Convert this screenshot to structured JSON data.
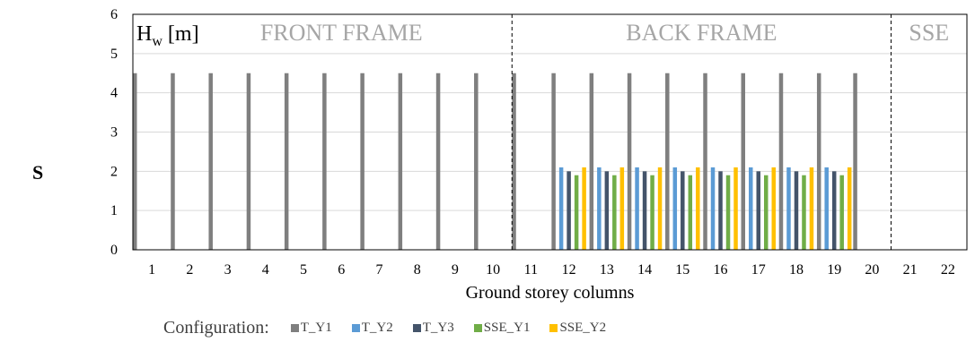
{
  "side_label": "S",
  "legend": {
    "title": "Configuration:",
    "items": [
      {
        "name": "T_Y1",
        "color": "#7f7f7f"
      },
      {
        "name": "T_Y2",
        "color": "#5b9bd5"
      },
      {
        "name": "T_Y3",
        "color": "#44546a"
      },
      {
        "name": "SSE_Y1",
        "color": "#70ad47"
      },
      {
        "name": "SSE_Y2",
        "color": "#ffc000"
      }
    ]
  },
  "chart_data": {
    "type": "bar",
    "title": "",
    "xlabel": "Ground storey columns",
    "ylabel": "",
    "ylim": [
      0,
      6
    ],
    "yticks": [
      0,
      1,
      2,
      3,
      4,
      5,
      6
    ],
    "grid": true,
    "legend_position": "bottom",
    "categories": [
      "1",
      "2",
      "3",
      "4",
      "5",
      "6",
      "7",
      "8",
      "9",
      "10",
      "11",
      "12",
      "13",
      "14",
      "15",
      "16",
      "17",
      "18",
      "19",
      "20",
      "21",
      "22"
    ],
    "series": [
      {
        "name": "T_Y1",
        "color": "#7f7f7f",
        "values": [
          4.5,
          4.5,
          4.5,
          4.5,
          4.5,
          4.5,
          4.5,
          4.5,
          4.5,
          4.5,
          4.5,
          4.5,
          4.5,
          4.5,
          4.5,
          4.5,
          4.5,
          4.5,
          4.5,
          4.5,
          null,
          null
        ]
      },
      {
        "name": "T_Y2",
        "color": "#5b9bd5",
        "values": [
          null,
          null,
          null,
          null,
          null,
          null,
          null,
          null,
          null,
          null,
          null,
          2.1,
          2.1,
          2.1,
          2.1,
          2.1,
          2.1,
          2.1,
          2.1,
          null,
          null,
          null
        ]
      },
      {
        "name": "T_Y3",
        "color": "#44546a",
        "values": [
          null,
          null,
          null,
          null,
          null,
          null,
          null,
          null,
          null,
          null,
          null,
          2.0,
          2.0,
          2.0,
          2.0,
          2.0,
          2.0,
          2.0,
          2.0,
          null,
          null,
          null
        ]
      },
      {
        "name": "SSE_Y1",
        "color": "#70ad47",
        "values": [
          null,
          null,
          null,
          null,
          null,
          null,
          null,
          null,
          null,
          null,
          null,
          1.9,
          1.9,
          1.9,
          1.9,
          1.9,
          1.9,
          1.9,
          1.9,
          null,
          null,
          null
        ]
      },
      {
        "name": "SSE_Y2",
        "color": "#ffc000",
        "values": [
          null,
          null,
          null,
          null,
          null,
          null,
          null,
          null,
          null,
          null,
          null,
          2.1,
          2.1,
          2.1,
          2.1,
          2.1,
          2.1,
          2.1,
          2.1,
          null,
          null,
          null
        ]
      }
    ],
    "annotations": {
      "axis_title_base": "H",
      "axis_title_sub": "w",
      "axis_title_unit": " [m]",
      "regions": [
        {
          "label": "FRONT FRAME",
          "from_category": "1",
          "to_category": "11"
        },
        {
          "label": "BACK FRAME",
          "from_category": "11",
          "to_category": "20"
        },
        {
          "label": "SSE",
          "from_category": "21",
          "to_category": "22"
        }
      ],
      "dividers_after_category": [
        "10",
        "20"
      ]
    }
  }
}
